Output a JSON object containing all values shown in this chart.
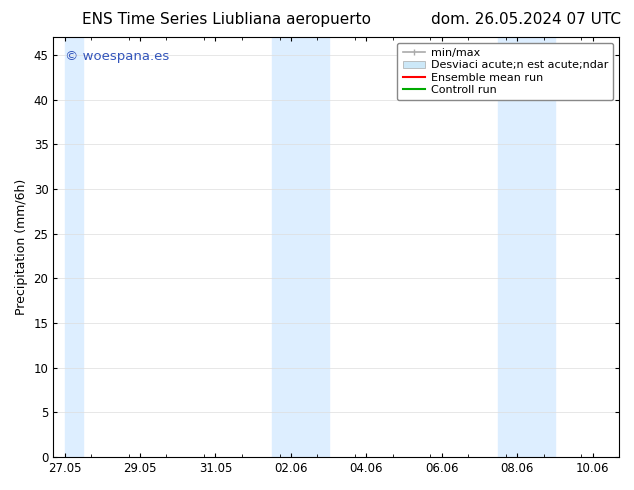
{
  "title_left": "ENS Time Series Liubliana aeropuerto",
  "title_right": "dom. 26.05.2024 07 UTC",
  "ylabel": "Precipitation (mm/6h)",
  "background_color": "#ffffff",
  "plot_bg_color": "#ffffff",
  "ylim": [
    0,
    47
  ],
  "yticks": [
    0,
    5,
    10,
    15,
    20,
    25,
    30,
    35,
    40,
    45
  ],
  "shaded_regions": [
    {
      "x_start": 0.0,
      "x_end": 0.5
    },
    {
      "x_start": 5.5,
      "x_end": 7.0
    },
    {
      "x_start": 11.5,
      "x_end": 13.0
    }
  ],
  "x_tick_labels": [
    "27.05",
    "29.05",
    "31.05",
    "02.06",
    "04.06",
    "06.06",
    "08.06",
    "10.06"
  ],
  "x_tick_positions": [
    0,
    2,
    4,
    6,
    8,
    10,
    12,
    14
  ],
  "x_lim": [
    -0.3,
    14.7
  ],
  "shade_color": "#ddeeff",
  "watermark_text": "© woespana.es",
  "watermark_color": "#3355bb",
  "title_fontsize": 11,
  "axis_label_fontsize": 9,
  "tick_fontsize": 8.5,
  "legend_fontsize": 8,
  "grid_color": "#dddddd",
  "spine_color": "#000000",
  "legend_label_minmax": "min/max",
  "legend_label_std": "Desviaci acute;n est acute;ndar",
  "legend_label_ensemble": "Ensemble mean run",
  "legend_label_control": "Controll run",
  "minmax_color": "#aaaaaa",
  "std_color": "#cce8f8",
  "ensemble_color": "#ff0000",
  "control_color": "#00aa00"
}
